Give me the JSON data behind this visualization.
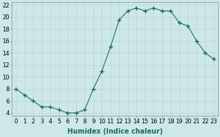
{
  "x": [
    0,
    1,
    2,
    3,
    4,
    5,
    6,
    7,
    8,
    9,
    10,
    11,
    12,
    13,
    14,
    15,
    16,
    17,
    18,
    19,
    20,
    21,
    22,
    23
  ],
  "y": [
    8,
    7,
    6,
    5,
    5,
    4.5,
    4,
    4,
    4.5,
    8,
    11,
    15,
    19.5,
    21,
    21.5,
    21,
    21.5,
    21,
    21,
    19,
    18.5,
    16,
    14,
    13
  ],
  "line_color": "#1a6b5a",
  "marker": "+",
  "marker_size": 4,
  "bg_color": "#cde8e8",
  "grid_color": "#b8d4d4",
  "xlabel": "Humidex (Indice chaleur)",
  "xlim": [
    -0.5,
    23.5
  ],
  "ylim": [
    3.5,
    22.5
  ],
  "yticks": [
    4,
    6,
    8,
    10,
    12,
    14,
    16,
    18,
    20,
    22
  ],
  "xticks": [
    0,
    1,
    2,
    3,
    4,
    5,
    6,
    7,
    8,
    9,
    10,
    11,
    12,
    13,
    14,
    15,
    16,
    17,
    18,
    19,
    20,
    21,
    22,
    23
  ],
  "xlabel_fontsize": 7,
  "tick_fontsize": 6
}
